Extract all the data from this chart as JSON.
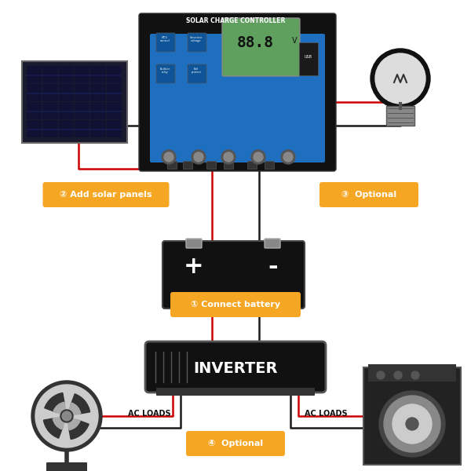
{
  "bg_color": "#ffffff",
  "orange_color": "#F5A623",
  "red_color": "#CC0000",
  "black_color": "#1a1a1a",
  "dark_color": "#222222",
  "blue_color": "#1E90FF",
  "labels": {
    "title_controller": "SOLAR CHARGE CONTROLLER",
    "label1": "① Connect battery",
    "label2": "② Add solar panels",
    "label3": "③  Optional",
    "label4": "④  Optional",
    "inverter": "INVERTER",
    "ac_loads_left": "AC LOADS",
    "ac_loads_right": "AC LOADS"
  }
}
